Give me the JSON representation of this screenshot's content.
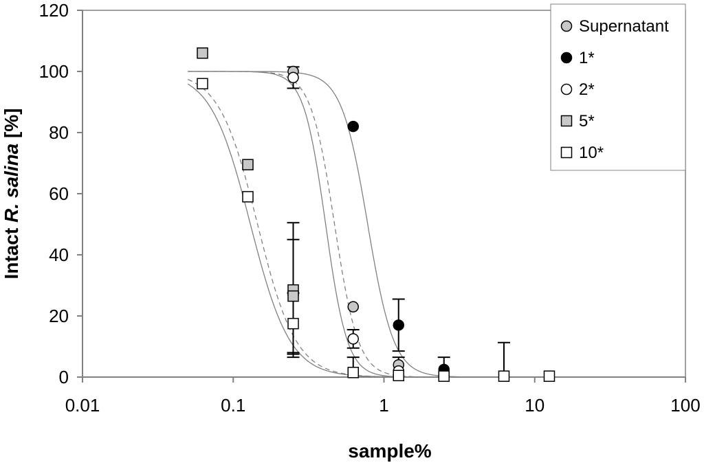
{
  "chart_data": {
    "type": "scatter",
    "xlabel": "sample%",
    "ylabel_prefix": "Intact ",
    "ylabel_italic": "R. salina",
    "ylabel_suffix": " [%]",
    "x_scale": "log",
    "xlim": [
      0.01,
      100
    ],
    "ylim": [
      0,
      120
    ],
    "x_ticks": [
      0.01,
      0.1,
      1,
      10,
      100
    ],
    "x_tick_labels": [
      "0.01",
      "0.1",
      "1",
      "10",
      "100"
    ],
    "y_ticks": [
      0,
      20,
      40,
      60,
      80,
      100,
      120
    ],
    "y_tick_labels": [
      "0",
      "20",
      "40",
      "60",
      "80",
      "100",
      "120"
    ],
    "grid": false,
    "legend_position": "top-right",
    "series": [
      {
        "name": "Supernatant",
        "marker": "circle",
        "fill": "#c8c8c8",
        "points": [
          {
            "x": 0.25,
            "y": 100,
            "err": 0
          },
          {
            "x": 0.625,
            "y": 23,
            "err": 0
          },
          {
            "x": 1.25,
            "y": 4,
            "err": 0
          },
          {
            "x": 2.5,
            "y": 1,
            "err": 0
          }
        ],
        "fit": {
          "ec50": 0.47,
          "hill": 5.5,
          "dash": true
        }
      },
      {
        "name": "1*",
        "marker": "circle",
        "fill": "#000000",
        "points": [
          {
            "x": 0.625,
            "y": 82,
            "err": 0
          },
          {
            "x": 1.25,
            "y": 17,
            "err": 8.5
          },
          {
            "x": 2.5,
            "y": 2.5,
            "err": 4
          }
        ],
        "fit": {
          "ec50": 0.78,
          "hill": 5.0,
          "dash": false
        }
      },
      {
        "name": "2*",
        "marker": "circle",
        "fill": "#ffffff",
        "points": [
          {
            "x": 0.25,
            "y": 98,
            "err": 3.5
          },
          {
            "x": 0.625,
            "y": 12.5,
            "err": 3
          },
          {
            "x": 1.25,
            "y": 2,
            "err": 4.5
          },
          {
            "x": 2.5,
            "y": 0.5,
            "err": 0
          }
        ],
        "fit": {
          "ec50": 0.41,
          "hill": 6.0,
          "dash": false
        }
      },
      {
        "name": "5*",
        "marker": "square",
        "fill": "#c8c8c8",
        "points": [
          {
            "x": 0.0625,
            "y": 106,
            "err": 0
          },
          {
            "x": 0.125,
            "y": 69.5,
            "err": 0
          },
          {
            "x": 0.25,
            "y": 28.5,
            "err": 22
          },
          {
            "x": 0.25,
            "y": 26.5,
            "err": 18.5
          }
        ],
        "fit": {
          "ec50": 0.145,
          "hill": 3.4,
          "dash": true
        }
      },
      {
        "name": "10*",
        "marker": "square",
        "fill": "#ffffff",
        "points": [
          {
            "x": 0.0625,
            "y": 96,
            "err": 0
          },
          {
            "x": 0.125,
            "y": 59,
            "err": 0
          },
          {
            "x": 0.25,
            "y": 17.5,
            "err": 10
          },
          {
            "x": 0.625,
            "y": 1.5,
            "err": 5
          },
          {
            "x": 1.25,
            "y": 0.5,
            "err": 0
          },
          {
            "x": 2.5,
            "y": 0.3,
            "err": 0
          },
          {
            "x": 6.25,
            "y": 0.3,
            "err": 11
          },
          {
            "x": 12.5,
            "y": 0.3,
            "err": 0
          }
        ],
        "fit": {
          "ec50": 0.13,
          "hill": 3.3,
          "dash": false
        }
      }
    ]
  }
}
